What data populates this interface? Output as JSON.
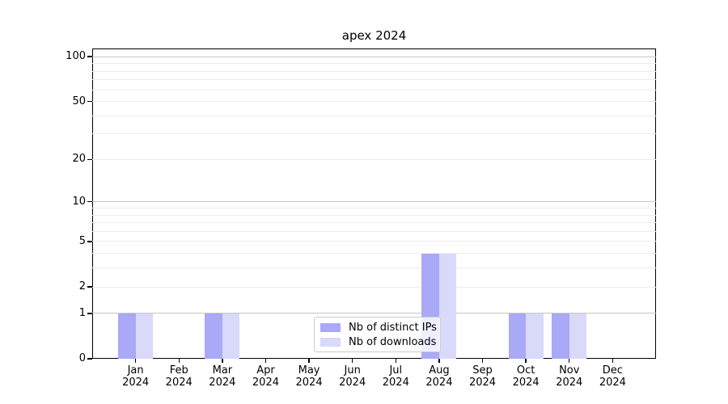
{
  "title": "apex 2024",
  "legend": {
    "entries": [
      {
        "label": "Nb of distinct IPs",
        "color": "#a9a9f7"
      },
      {
        "label": "Nb of downloads",
        "color": "#d9d9f9"
      }
    ]
  },
  "colors": {
    "distinct_ips_bar": "#a9a9f7",
    "downloads_bar": "#d9d9f9",
    "minor_gridline": "#ececec",
    "major_gridline": "#c6c6c6",
    "axis": "#000000",
    "legend_border": "#cccccc"
  },
  "chart_data": {
    "type": "bar",
    "title": "apex 2024",
    "xlabel": "",
    "ylabel": "",
    "categories": [
      "Jan 2024",
      "Feb 2024",
      "Mar 2024",
      "Apr 2024",
      "May 2024",
      "Jun 2024",
      "Jul 2024",
      "Aug 2024",
      "Sep 2024",
      "Oct 2024",
      "Nov 2024",
      "Dec 2024"
    ],
    "series": [
      {
        "name": "Nb of distinct IPs",
        "color": "#a9a9f7",
        "values": [
          1,
          0,
          1,
          0,
          0,
          0,
          0,
          4,
          0,
          1,
          1,
          0
        ]
      },
      {
        "name": "Nb of downloads",
        "color": "#d9d9f9",
        "values": [
          1,
          0,
          1,
          0,
          0,
          0,
          0,
          4,
          0,
          1,
          1,
          0
        ]
      }
    ],
    "yscale": "log10(1+v)",
    "ylim": [
      0,
      113
    ],
    "ytick_labels": [
      0,
      1,
      2,
      5,
      10,
      20,
      50,
      100
    ],
    "minor_gridlines": [
      2,
      3,
      4,
      5,
      6,
      7,
      8,
      9,
      20,
      30,
      40,
      50,
      60,
      70,
      80,
      90
    ],
    "major_gridlines": [
      1,
      10,
      100
    ],
    "grid": true,
    "legend_position": "inside lower-center"
  }
}
